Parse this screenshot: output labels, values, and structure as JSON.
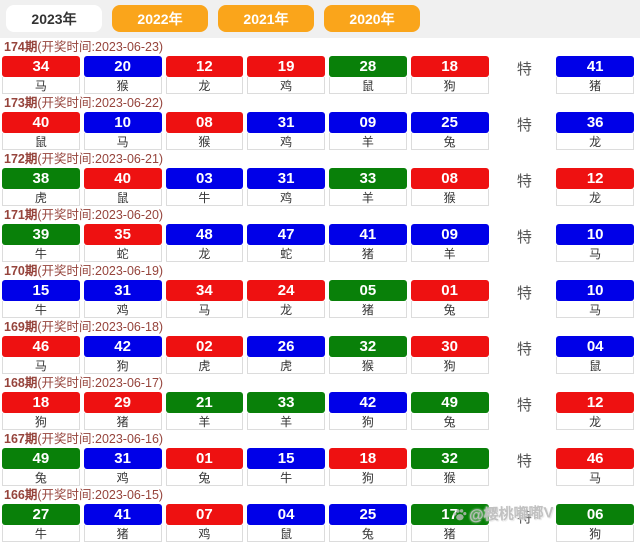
{
  "tabs": [
    {
      "label": "2023年",
      "active": true
    },
    {
      "label": "2022年",
      "active": false
    },
    {
      "label": "2021年",
      "active": false
    },
    {
      "label": "2020年",
      "active": false
    }
  ],
  "special_label": "特",
  "watermark": {
    "icon": "paw-icon",
    "handle": "@樱桃嘟嘟V"
  },
  "colors": {
    "red": "#ee1111",
    "blue": "#0000e8",
    "green": "#098009",
    "tab_orange": "#faa51b",
    "header_text": "#96443c"
  },
  "draws": [
    {
      "period": "174期",
      "time_label": "(开奖时间:2023-06-23)",
      "balls": [
        {
          "num": "34",
          "color": "red",
          "zodiac": "马"
        },
        {
          "num": "20",
          "color": "blue",
          "zodiac": "猴"
        },
        {
          "num": "12",
          "color": "red",
          "zodiac": "龙"
        },
        {
          "num": "19",
          "color": "red",
          "zodiac": "鸡"
        },
        {
          "num": "28",
          "color": "green",
          "zodiac": "鼠"
        },
        {
          "num": "18",
          "color": "red",
          "zodiac": "狗"
        }
      ],
      "special": {
        "num": "41",
        "color": "blue",
        "zodiac": "猪"
      }
    },
    {
      "period": "173期",
      "time_label": "(开奖时间:2023-06-22)",
      "balls": [
        {
          "num": "40",
          "color": "red",
          "zodiac": "鼠"
        },
        {
          "num": "10",
          "color": "blue",
          "zodiac": "马"
        },
        {
          "num": "08",
          "color": "red",
          "zodiac": "猴"
        },
        {
          "num": "31",
          "color": "blue",
          "zodiac": "鸡"
        },
        {
          "num": "09",
          "color": "blue",
          "zodiac": "羊"
        },
        {
          "num": "25",
          "color": "blue",
          "zodiac": "兔"
        }
      ],
      "special": {
        "num": "36",
        "color": "blue",
        "zodiac": "龙"
      }
    },
    {
      "period": "172期",
      "time_label": "(开奖时间:2023-06-21)",
      "balls": [
        {
          "num": "38",
          "color": "green",
          "zodiac": "虎"
        },
        {
          "num": "40",
          "color": "red",
          "zodiac": "鼠"
        },
        {
          "num": "03",
          "color": "blue",
          "zodiac": "牛"
        },
        {
          "num": "31",
          "color": "blue",
          "zodiac": "鸡"
        },
        {
          "num": "33",
          "color": "green",
          "zodiac": "羊"
        },
        {
          "num": "08",
          "color": "red",
          "zodiac": "猴"
        }
      ],
      "special": {
        "num": "12",
        "color": "red",
        "zodiac": "龙"
      }
    },
    {
      "period": "171期",
      "time_label": "(开奖时间:2023-06-20)",
      "balls": [
        {
          "num": "39",
          "color": "green",
          "zodiac": "牛"
        },
        {
          "num": "35",
          "color": "red",
          "zodiac": "蛇"
        },
        {
          "num": "48",
          "color": "blue",
          "zodiac": "龙"
        },
        {
          "num": "47",
          "color": "blue",
          "zodiac": "蛇"
        },
        {
          "num": "41",
          "color": "blue",
          "zodiac": "猪"
        },
        {
          "num": "09",
          "color": "blue",
          "zodiac": "羊"
        }
      ],
      "special": {
        "num": "10",
        "color": "blue",
        "zodiac": "马"
      }
    },
    {
      "period": "170期",
      "time_label": "(开奖时间:2023-06-19)",
      "balls": [
        {
          "num": "15",
          "color": "blue",
          "zodiac": "牛"
        },
        {
          "num": "31",
          "color": "blue",
          "zodiac": "鸡"
        },
        {
          "num": "34",
          "color": "red",
          "zodiac": "马"
        },
        {
          "num": "24",
          "color": "red",
          "zodiac": "龙"
        },
        {
          "num": "05",
          "color": "green",
          "zodiac": "猪"
        },
        {
          "num": "01",
          "color": "red",
          "zodiac": "兔"
        }
      ],
      "special": {
        "num": "10",
        "color": "blue",
        "zodiac": "马"
      }
    },
    {
      "period": "169期",
      "time_label": "(开奖时间:2023-06-18)",
      "balls": [
        {
          "num": "46",
          "color": "red",
          "zodiac": "马"
        },
        {
          "num": "42",
          "color": "blue",
          "zodiac": "狗"
        },
        {
          "num": "02",
          "color": "red",
          "zodiac": "虎"
        },
        {
          "num": "26",
          "color": "blue",
          "zodiac": "虎"
        },
        {
          "num": "32",
          "color": "green",
          "zodiac": "猴"
        },
        {
          "num": "30",
          "color": "red",
          "zodiac": "狗"
        }
      ],
      "special": {
        "num": "04",
        "color": "blue",
        "zodiac": "鼠"
      }
    },
    {
      "period": "168期",
      "time_label": "(开奖时间:2023-06-17)",
      "balls": [
        {
          "num": "18",
          "color": "red",
          "zodiac": "狗"
        },
        {
          "num": "29",
          "color": "red",
          "zodiac": "猪"
        },
        {
          "num": "21",
          "color": "green",
          "zodiac": "羊"
        },
        {
          "num": "33",
          "color": "green",
          "zodiac": "羊"
        },
        {
          "num": "42",
          "color": "blue",
          "zodiac": "狗"
        },
        {
          "num": "49",
          "color": "green",
          "zodiac": "兔"
        }
      ],
      "special": {
        "num": "12",
        "color": "red",
        "zodiac": "龙"
      }
    },
    {
      "period": "167期",
      "time_label": "(开奖时间:2023-06-16)",
      "balls": [
        {
          "num": "49",
          "color": "green",
          "zodiac": "兔"
        },
        {
          "num": "31",
          "color": "blue",
          "zodiac": "鸡"
        },
        {
          "num": "01",
          "color": "red",
          "zodiac": "兔"
        },
        {
          "num": "15",
          "color": "blue",
          "zodiac": "牛"
        },
        {
          "num": "18",
          "color": "red",
          "zodiac": "狗"
        },
        {
          "num": "32",
          "color": "green",
          "zodiac": "猴"
        }
      ],
      "special": {
        "num": "46",
        "color": "red",
        "zodiac": "马"
      }
    },
    {
      "period": "166期",
      "time_label": "(开奖时间:2023-06-15)",
      "balls": [
        {
          "num": "27",
          "color": "green",
          "zodiac": "牛"
        },
        {
          "num": "41",
          "color": "blue",
          "zodiac": "猪"
        },
        {
          "num": "07",
          "color": "red",
          "zodiac": "鸡"
        },
        {
          "num": "04",
          "color": "blue",
          "zodiac": "鼠"
        },
        {
          "num": "25",
          "color": "blue",
          "zodiac": "兔"
        },
        {
          "num": "17",
          "color": "green",
          "zodiac": "猪"
        }
      ],
      "special": {
        "num": "06",
        "color": "green",
        "zodiac": "狗"
      }
    }
  ]
}
